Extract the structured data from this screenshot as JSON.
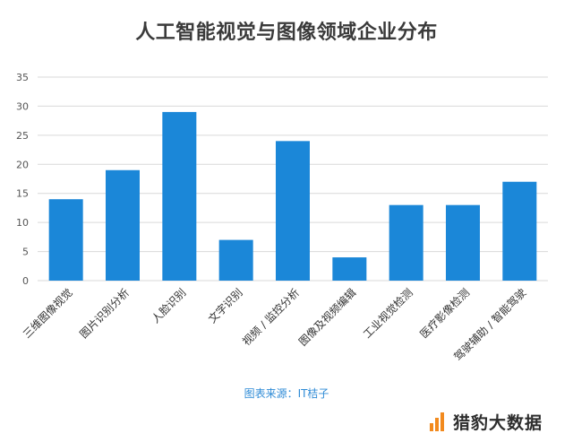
{
  "chart_data": {
    "type": "bar",
    "title": "人工智能视觉与图像领域企业分布",
    "categories": [
      "三维图像视觉",
      "图片识别分析",
      "人脸识别",
      "文字识别",
      "视频 / 监控分析",
      "图像及视频编辑",
      "工业视觉检测",
      "医疗影像检测",
      "驾驶辅助 / 智能驾驶"
    ],
    "values": [
      14,
      19,
      29,
      7,
      24,
      4,
      13,
      13,
      17
    ],
    "ylim": [
      0,
      35
    ],
    "yticks": [
      0,
      5,
      10,
      15,
      20,
      25,
      30,
      35
    ],
    "grid": true,
    "colors": {
      "bar": "#1b87d8",
      "grid": "#d9d9d9"
    }
  },
  "source": "图表来源：IT桔子",
  "brand": {
    "name": "猎豹大数据",
    "icon": "bar-chart-logo-icon"
  }
}
